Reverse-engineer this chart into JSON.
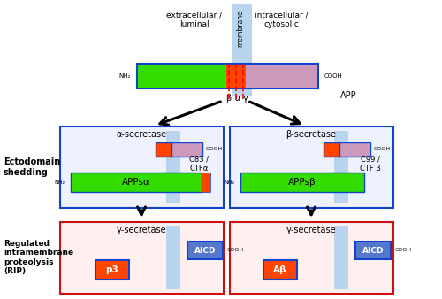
{
  "bg_color": "#ffffff",
  "green_color": "#33dd00",
  "orange_color": "#ff4400",
  "pink_color": "#cc99bb",
  "blue_membrane": "#b8d4ee",
  "dark_blue_border": "#1144cc",
  "red_border": "#cc1111",
  "red_dashed": "#ff0000",
  "aicd_color": "#5577cc",
  "top_left_label": "extracellular /\nluminal",
  "top_right_label": "intracellular /\ncytosolic",
  "membrane_label": "membrane",
  "label_ecto": "Ectodomain\nshedding",
  "label_rip": "Regulated\nintramembrane\nproteolysis\n(RIP)"
}
